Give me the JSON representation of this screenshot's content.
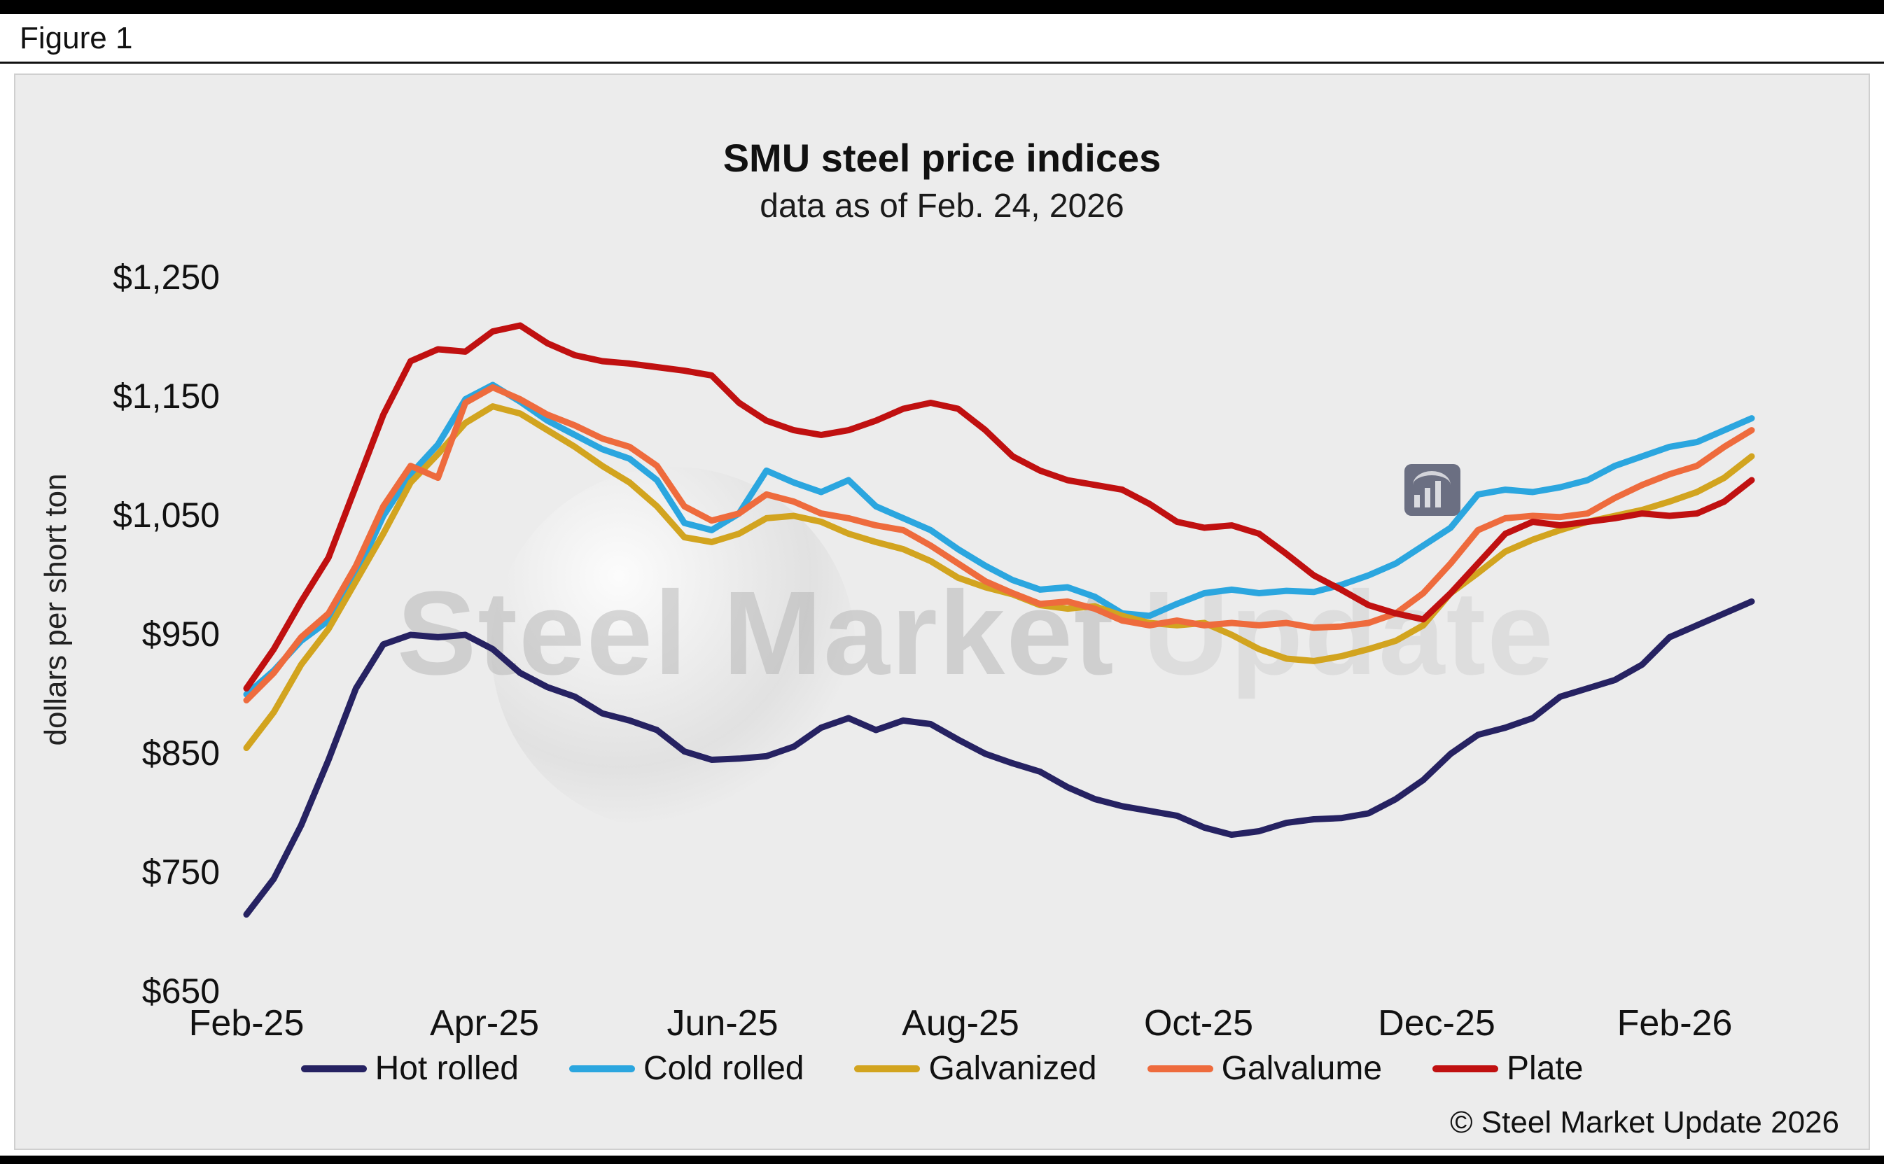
{
  "figure_label": "Figure 1",
  "copyright": "© Steel Market Update 2026",
  "watermark": {
    "line1": "Steel Market",
    "line2": "Update"
  },
  "chart_data": {
    "type": "line",
    "title": "SMU steel price indices",
    "subtitle": "data as of Feb. 24, 2026",
    "ylabel": "dollars per short ton",
    "xlabel": "",
    "grid": false,
    "legend_position": "bottom",
    "background": "#ececec",
    "ylim": [
      650,
      1250
    ],
    "y_tick_values": [
      650,
      750,
      850,
      950,
      1050,
      1150,
      1250
    ],
    "y_tick_labels": [
      "$650",
      "$750",
      "$850",
      "$950",
      "$1,050",
      "$1,150",
      "$1,250"
    ],
    "x_tick_labels": [
      "Feb-25",
      "Apr-25",
      "Jun-25",
      "Aug-25",
      "Oct-25",
      "Dec-25",
      "Feb-26"
    ],
    "x_unit": "weekly observations, Feb 2025 – Feb 24 2026",
    "series": [
      {
        "name": "Hot rolled",
        "color": "#262262",
        "values": [
          715,
          745,
          790,
          845,
          905,
          942,
          950,
          948,
          950,
          938,
          918,
          906,
          898,
          884,
          878,
          870,
          852,
          845,
          846,
          848,
          856,
          872,
          880,
          870,
          878,
          875,
          862,
          850,
          842,
          835,
          822,
          812,
          806,
          802,
          798,
          788,
          782,
          785,
          792,
          795,
          796,
          800,
          812,
          828,
          850,
          866,
          872,
          880,
          898,
          905,
          912,
          925,
          948,
          958,
          968,
          978
        ]
      },
      {
        "name": "Cold rolled",
        "color": "#2ba6df",
        "values": [
          900,
          920,
          945,
          962,
          1000,
          1050,
          1085,
          1110,
          1148,
          1160,
          1146,
          1130,
          1118,
          1106,
          1098,
          1080,
          1044,
          1038,
          1052,
          1088,
          1078,
          1070,
          1080,
          1058,
          1048,
          1038,
          1022,
          1008,
          996,
          988,
          990,
          982,
          968,
          966,
          976,
          985,
          988,
          985,
          987,
          986,
          992,
          1000,
          1010,
          1025,
          1040,
          1068,
          1072,
          1070,
          1074,
          1080,
          1092,
          1100,
          1108,
          1112,
          1122,
          1132
        ]
      },
      {
        "name": "Galvanized",
        "color": "#d2a41f",
        "values": [
          855,
          885,
          925,
          955,
          995,
          1035,
          1078,
          1102,
          1128,
          1142,
          1136,
          1122,
          1108,
          1092,
          1078,
          1058,
          1032,
          1028,
          1035,
          1048,
          1050,
          1045,
          1035,
          1028,
          1022,
          1012,
          998,
          990,
          984,
          975,
          972,
          974,
          966,
          960,
          958,
          960,
          950,
          938,
          930,
          928,
          932,
          938,
          945,
          958,
          985,
          1002,
          1020,
          1030,
          1038,
          1045,
          1050,
          1055,
          1062,
          1070,
          1082,
          1100
        ]
      },
      {
        "name": "Galvalume",
        "color": "#ee6b3d",
        "values": [
          895,
          918,
          948,
          968,
          1008,
          1058,
          1092,
          1082,
          1145,
          1158,
          1148,
          1135,
          1126,
          1115,
          1108,
          1092,
          1058,
          1046,
          1052,
          1068,
          1062,
          1052,
          1048,
          1042,
          1038,
          1025,
          1010,
          995,
          985,
          976,
          978,
          972,
          962,
          958,
          962,
          958,
          960,
          958,
          960,
          956,
          957,
          960,
          968,
          985,
          1010,
          1038,
          1048,
          1050,
          1049,
          1052,
          1065,
          1076,
          1085,
          1092,
          1108,
          1122
        ]
      },
      {
        "name": "Plate",
        "color": "#c01010",
        "values": [
          905,
          938,
          978,
          1015,
          1075,
          1135,
          1180,
          1190,
          1188,
          1205,
          1210,
          1195,
          1185,
          1180,
          1178,
          1175,
          1172,
          1168,
          1145,
          1130,
          1122,
          1118,
          1122,
          1130,
          1140,
          1145,
          1140,
          1122,
          1100,
          1088,
          1080,
          1076,
          1072,
          1060,
          1045,
          1040,
          1042,
          1035,
          1018,
          1000,
          988,
          975,
          968,
          963,
          985,
          1010,
          1035,
          1045,
          1042,
          1045,
          1048,
          1052,
          1050,
          1052,
          1062,
          1080
        ]
      }
    ]
  }
}
